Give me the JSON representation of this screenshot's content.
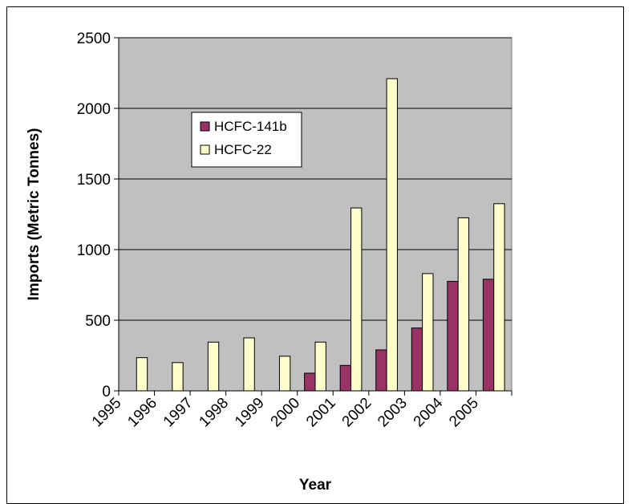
{
  "chart_data": {
    "type": "bar",
    "title": "",
    "xlabel": "Year",
    "ylabel": "Imports (Metric Tonnes)",
    "ylim": [
      0,
      2500
    ],
    "yticks": [
      0,
      500,
      1000,
      1500,
      2000,
      2500
    ],
    "categories": [
      "1995",
      "1996",
      "1997",
      "1998",
      "1999",
      "2000",
      "2001",
      "2002",
      "2003",
      "2004",
      "2005"
    ],
    "series": [
      {
        "name": "HCFC-141b",
        "color": "#993366",
        "values": [
          0,
          0,
          0,
          0,
          0,
          125,
          180,
          290,
          445,
          775,
          790
        ]
      },
      {
        "name": "HCFC-22",
        "color": "#ffffcc",
        "values": [
          235,
          200,
          345,
          375,
          245,
          345,
          1295,
          2210,
          830,
          1225,
          1325
        ]
      }
    ],
    "grid": true,
    "plot_background": "#c0c0c0",
    "legend_position": "upper-left inside plot"
  }
}
